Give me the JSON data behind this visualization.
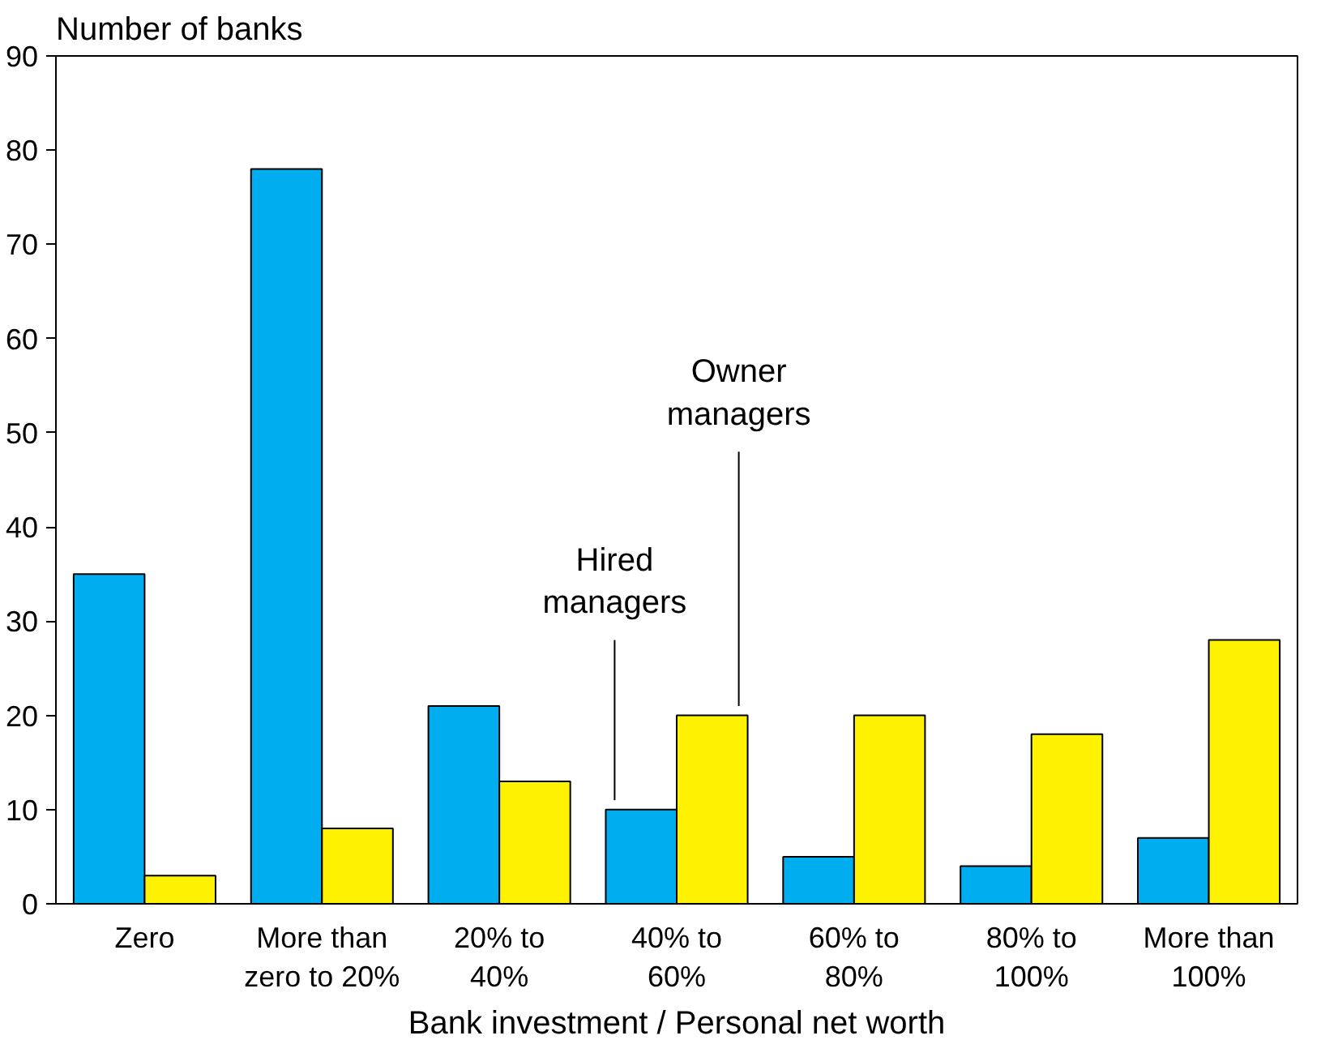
{
  "chart_data": {
    "type": "bar",
    "xlabel": "Bank investment / Personal net worth",
    "ylabel": "Number of banks",
    "categories": [
      "Zero",
      "More than\nzero to 20%",
      "20% to\n40%",
      "40% to\n60%",
      "60% to\n80%",
      "80% to\n100%",
      "More than\n100%"
    ],
    "series": [
      {
        "name": "Hired managers",
        "color": "#00aeef",
        "values": [
          35,
          78,
          21,
          10,
          5,
          4,
          7
        ]
      },
      {
        "name": "Owner managers",
        "color": "#fff200",
        "values": [
          3,
          8,
          13,
          20,
          20,
          18,
          28
        ]
      }
    ],
    "ylim": [
      0,
      90
    ],
    "yticks": [
      0,
      10,
      20,
      30,
      40,
      50,
      60,
      70,
      80,
      90
    ],
    "grid": false,
    "legend": false
  }
}
